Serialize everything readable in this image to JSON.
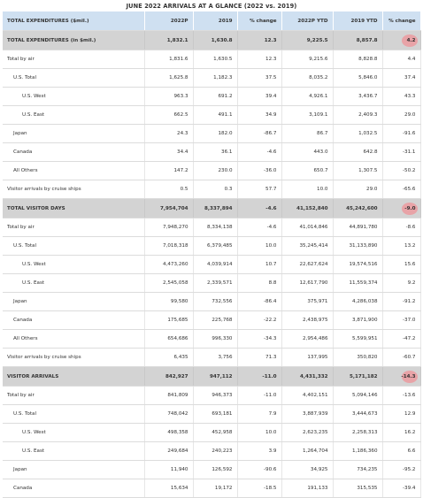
{
  "title": "JUNE 2022 ARRIVALS AT A GLANCE (2022 vs. 2019)",
  "colors": {
    "header_bg": "#cfe0f1",
    "total_bg": "#d3d3d3",
    "highlight": "#e8a3a7"
  },
  "columns": [
    "TOTAL EXPENDITURES ($mil.)",
    "2022P",
    "2019",
    "% change",
    "2022P YTD",
    "2019 YTD",
    "% change"
  ],
  "rows": [
    {
      "label": "TOTAL EXPENDITURES (in $mil.)",
      "cells": [
        "1,832.1",
        "1,630.8",
        "12.3",
        "9,225.5",
        "8,857.8",
        "4.2"
      ]
    },
    {
      "label": "Total by air",
      "cells": [
        "1,831.6",
        "1,630.5",
        "12.3",
        "9,215.6",
        "8,828.8",
        "4.4"
      ]
    },
    {
      "label": "U.S. Total",
      "cells": [
        "1,625.8",
        "1,182.3",
        "37.5",
        "8,035.2",
        "5,846.0",
        "37.4"
      ]
    },
    {
      "label": "U.S. West",
      "cells": [
        "963.3",
        "691.2",
        "39.4",
        "4,926.1",
        "3,436.7",
        "43.3"
      ]
    },
    {
      "label": "U.S. East",
      "cells": [
        "662.5",
        "491.1",
        "34.9",
        "3,109.1",
        "2,409.3",
        "29.0"
      ]
    },
    {
      "label": "Japan",
      "cells": [
        "24.3",
        "182.0",
        "-86.7",
        "86.7",
        "1,032.5",
        "-91.6"
      ]
    },
    {
      "label": "Canada",
      "cells": [
        "34.4",
        "36.1",
        "-4.6",
        "443.0",
        "642.8",
        "-31.1"
      ]
    },
    {
      "label": "All Others",
      "cells": [
        "147.2",
        "230.0",
        "-36.0",
        "650.7",
        "1,307.5",
        "-50.2"
      ]
    },
    {
      "label": "Visitor arrivals by cruise ships",
      "cells": [
        "0.5",
        "0.3",
        "57.7",
        "10.0",
        "29.0",
        "-65.6"
      ]
    },
    {
      "label": "TOTAL VISITOR DAYS",
      "cells": [
        "7,954,704",
        "8,337,894",
        "-4.6",
        "41,152,840",
        "45,242,600",
        "-9.0"
      ]
    },
    {
      "label": "Total by air",
      "cells": [
        "7,948,270",
        "8,334,138",
        "-4.6",
        "41,014,846",
        "44,891,780",
        "-8.6"
      ]
    },
    {
      "label": "U.S. Total",
      "cells": [
        "7,018,318",
        "6,379,485",
        "10.0",
        "35,245,414",
        "31,133,890",
        "13.2"
      ]
    },
    {
      "label": "U.S. West",
      "cells": [
        "4,473,260",
        "4,039,914",
        "10.7",
        "22,627,624",
        "19,574,516",
        "15.6"
      ]
    },
    {
      "label": "U.S. East",
      "cells": [
        "2,545,058",
        "2,339,571",
        "8.8",
        "12,617,790",
        "11,559,374",
        "9.2"
      ]
    },
    {
      "label": "Japan",
      "cells": [
        "99,580",
        "732,556",
        "-86.4",
        "375,971",
        "4,286,038",
        "-91.2"
      ]
    },
    {
      "label": "Canada",
      "cells": [
        "175,685",
        "225,768",
        "-22.2",
        "2,438,975",
        "3,871,900",
        "-37.0"
      ]
    },
    {
      "label": "All Others",
      "cells": [
        "654,686",
        "996,330",
        "-34.3",
        "2,954,486",
        "5,599,951",
        "-47.2"
      ]
    },
    {
      "label": "Visitor arrivals by cruise ships",
      "cells": [
        "6,435",
        "3,756",
        "71.3",
        "137,995",
        "350,820",
        "-60.7"
      ]
    },
    {
      "label": "VISITOR ARRIVALS",
      "cells": [
        "842,927",
        "947,112",
        "-11.0",
        "4,431,332",
        "5,171,182",
        "-14.3"
      ]
    },
    {
      "label": "Total by air",
      "cells": [
        "841,809",
        "946,373",
        "-11.0",
        "4,402,151",
        "5,094,146",
        "-13.6"
      ]
    },
    {
      "label": "U.S. Total",
      "cells": [
        "748,042",
        "693,181",
        "7.9",
        "3,887,939",
        "3,444,673",
        "12.9"
      ]
    },
    {
      "label": "U.S. West",
      "cells": [
        "498,358",
        "452,958",
        "10.0",
        "2,623,235",
        "2,258,313",
        "16.2"
      ]
    },
    {
      "label": "U.S. East",
      "cells": [
        "249,684",
        "240,223",
        "3.9",
        "1,264,704",
        "1,186,360",
        "6.6"
      ]
    },
    {
      "label": "Japan",
      "cells": [
        "11,940",
        "126,592",
        "-90.6",
        "34,925",
        "734,235",
        "-95.2"
      ]
    },
    {
      "label": "Canada",
      "cells": [
        "15,634",
        "19,172",
        "-18.5",
        "191,133",
        "315,535",
        "-39.4"
      ]
    }
  ]
}
